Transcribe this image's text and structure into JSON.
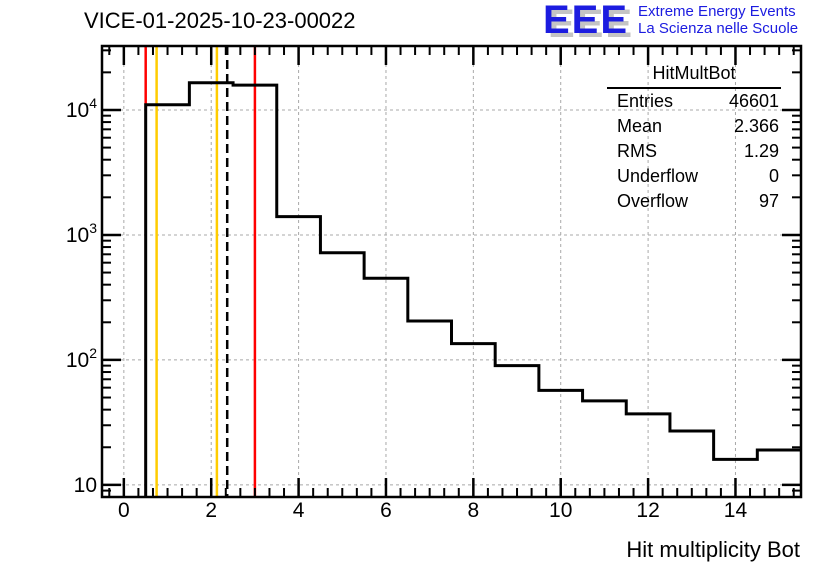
{
  "header": {
    "title": "VICE-01-2025-10-23-00022"
  },
  "logo": {
    "acronym": "EEE",
    "tagline_1": "Extreme Energy Events",
    "tagline_2": "La Scienza nelle Scuole",
    "color": "#1c1ce0",
    "shadow_color": "#c4c4c4"
  },
  "stats_box": {
    "title": "HitMultBot",
    "rows": [
      {
        "label": "Entries",
        "value": "46601"
      },
      {
        "label": "Mean",
        "value": "2.366"
      },
      {
        "label": "RMS",
        "value": "1.29"
      },
      {
        "label": "Underflow",
        "value": "0"
      },
      {
        "label": "Overflow",
        "value": "97"
      }
    ]
  },
  "chart_data": {
    "type": "bar",
    "title": "VICE-01-2025-10-23-00022",
    "xlabel": "Hit multiplicity Bot",
    "ylabel": "",
    "y_scale": "log",
    "xlim": [
      -0.5,
      15.5
    ],
    "ylim": [
      8,
      32500
    ],
    "grid": true,
    "legend": "none",
    "bin_centers": [
      0,
      1,
      2,
      3,
      4,
      5,
      6,
      7,
      8,
      9,
      10,
      11,
      12,
      13,
      14,
      15
    ],
    "values": [
      0,
      11000,
      16500,
      15800,
      1400,
      720,
      450,
      205,
      135,
      90,
      57,
      47,
      37,
      27,
      16,
      19
    ],
    "x_major_ticks": [
      0,
      2,
      4,
      6,
      8,
      10,
      12,
      14
    ],
    "y_major_ticks": [
      10,
      100,
      1000,
      10000
    ],
    "histogram_color": "#000000",
    "frame_color": "#000000",
    "grid_color": "#a8a8a8",
    "vlines": [
      {
        "x": 0.5,
        "color": "#ff0000",
        "style": "solid"
      },
      {
        "x": 0.75,
        "color": "#ffcc00",
        "style": "solid"
      },
      {
        "x": 2.13,
        "color": "#ffcc00",
        "style": "solid"
      },
      {
        "x": 2.366,
        "color": "#000000",
        "style": "dashed"
      },
      {
        "x": 3.0,
        "color": "#ff0000",
        "style": "solid"
      }
    ]
  }
}
